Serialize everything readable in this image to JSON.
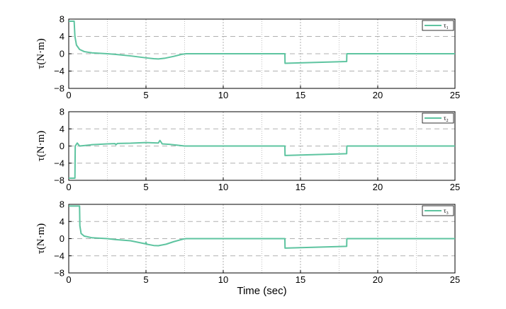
{
  "chart_data": [
    {
      "type": "line",
      "xlim": [
        0,
        25
      ],
      "ylim": [
        -8,
        8
      ],
      "xticks": [
        "0",
        "5",
        "10",
        "15",
        "20",
        "25"
      ],
      "yticks": [
        "8",
        "4",
        "0",
        "−4",
        "−8"
      ],
      "ylabel": "τ(N·m)",
      "xlabel": "",
      "grid": true,
      "legend_position": "top-right",
      "color": "#5ec4a0",
      "series": [
        {
          "name": "τ1",
          "points": [
            [
              0,
              7.5
            ],
            [
              0.35,
              7.5
            ],
            [
              0.4,
              4
            ],
            [
              0.5,
              2
            ],
            [
              0.7,
              1
            ],
            [
              1,
              0.5
            ],
            [
              1.5,
              0.2
            ],
            [
              2.5,
              0
            ],
            [
              3,
              -0.15
            ],
            [
              4,
              -0.5
            ],
            [
              5,
              -0.95
            ],
            [
              5.5,
              -1.15
            ],
            [
              5.8,
              -1.2
            ],
            [
              6.2,
              -1.05
            ],
            [
              6.8,
              -0.6
            ],
            [
              7.3,
              -0.15
            ],
            [
              7.6,
              0
            ],
            [
              10,
              0
            ],
            [
              13.99,
              0
            ],
            [
              14.0,
              -2.2
            ],
            [
              15,
              -2.1
            ],
            [
              16,
              -2.0
            ],
            [
              17,
              -1.9
            ],
            [
              17.99,
              -1.8
            ],
            [
              18,
              0
            ],
            [
              20,
              0
            ],
            [
              25,
              0
            ]
          ]
        }
      ]
    },
    {
      "type": "line",
      "xlim": [
        0,
        25
      ],
      "ylim": [
        -8,
        8
      ],
      "xticks": [
        "0",
        "5",
        "10",
        "15",
        "20",
        "25"
      ],
      "yticks": [
        "8",
        "4",
        "0",
        "−4",
        "−8"
      ],
      "ylabel": "τ(N·m)",
      "xlabel": "",
      "grid": true,
      "legend_position": "top-right",
      "color": "#5ec4a0",
      "series": [
        {
          "name": "τ2",
          "points": [
            [
              0,
              -7.5
            ],
            [
              0.4,
              -7.5
            ],
            [
              0.42,
              0
            ],
            [
              0.55,
              0.7
            ],
            [
              0.7,
              0
            ],
            [
              1,
              0.1
            ],
            [
              1.5,
              0.3
            ],
            [
              2.5,
              0.5
            ],
            [
              3,
              0.55
            ],
            [
              3.05,
              0.3
            ],
            [
              3.15,
              0.6
            ],
            [
              4,
              0.65
            ],
            [
              5,
              0.8
            ],
            [
              5.8,
              0.7
            ],
            [
              5.9,
              1.3
            ],
            [
              6.05,
              0.5
            ],
            [
              6.5,
              0.4
            ],
            [
              7,
              0.2
            ],
            [
              7.5,
              0
            ],
            [
              10,
              0
            ],
            [
              13.99,
              0
            ],
            [
              14.0,
              -2.2
            ],
            [
              15,
              -2.1
            ],
            [
              16,
              -2.0
            ],
            [
              17,
              -1.9
            ],
            [
              17.99,
              -1.8
            ],
            [
              18,
              0
            ],
            [
              20,
              0
            ],
            [
              25,
              0
            ]
          ]
        }
      ]
    },
    {
      "type": "line",
      "xlim": [
        0,
        25
      ],
      "ylim": [
        -8,
        8
      ],
      "xticks": [
        "0",
        "5",
        "10",
        "15",
        "20",
        "25"
      ],
      "yticks": [
        "8",
        "4",
        "0",
        "−4",
        "−8"
      ],
      "ylabel": "τ(N·m)",
      "xlabel": "Time (sec)",
      "grid": true,
      "legend_position": "top-right",
      "color": "#5ec4a0",
      "series": [
        {
          "name": "τ3",
          "points": [
            [
              0,
              7.6
            ],
            [
              0.7,
              7.6
            ],
            [
              0.72,
              3
            ],
            [
              0.8,
              1.2
            ],
            [
              1,
              0.6
            ],
            [
              1.5,
              0.2
            ],
            [
              2.5,
              0
            ],
            [
              3,
              -0.2
            ],
            [
              4,
              -0.5
            ],
            [
              4.95,
              -1.2
            ],
            [
              5.0,
              -0.9
            ],
            [
              5.05,
              -1.3
            ],
            [
              5.5,
              -1.6
            ],
            [
              5.8,
              -1.65
            ],
            [
              6.3,
              -1.3
            ],
            [
              6.8,
              -0.7
            ],
            [
              7.4,
              -0.1
            ],
            [
              7.6,
              0
            ],
            [
              10,
              0
            ],
            [
              13.99,
              0
            ],
            [
              14.0,
              -2.2
            ],
            [
              15,
              -2.1
            ],
            [
              16,
              -2.0
            ],
            [
              17,
              -1.9
            ],
            [
              17.99,
              -1.8
            ],
            [
              18,
              0
            ],
            [
              20,
              0
            ],
            [
              25,
              0
            ]
          ]
        }
      ]
    }
  ]
}
